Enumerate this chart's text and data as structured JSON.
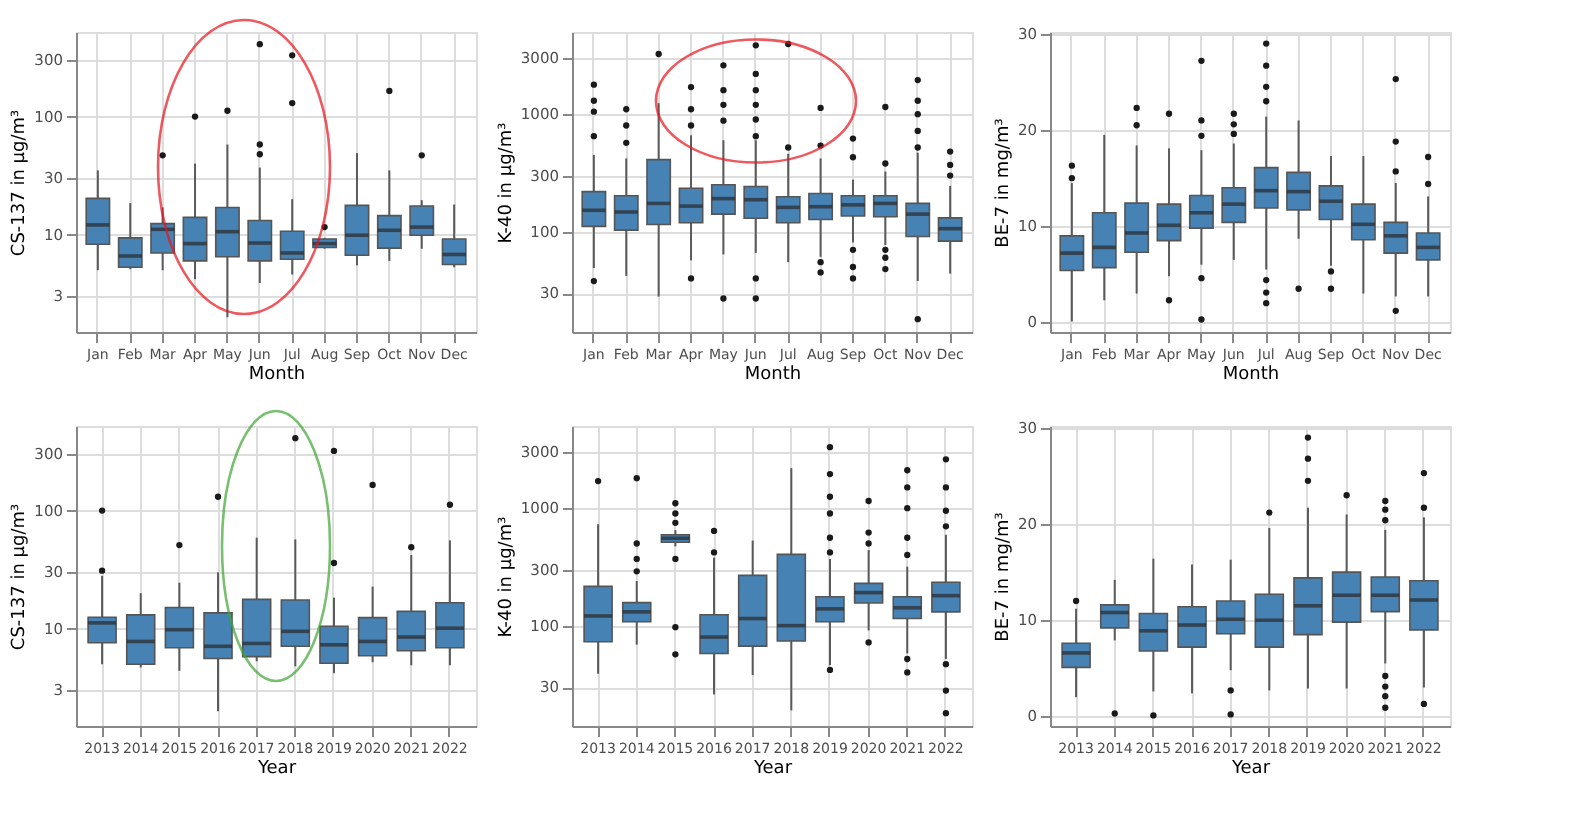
{
  "chart_data": [
    {
      "type": "box",
      "xlabel": "Month",
      "ylabel": "CS-137 in µg/m³",
      "categories": [
        "Jan",
        "Feb",
        "Mar",
        "Apr",
        "May",
        "Jun",
        "Jul",
        "Aug",
        "Sep",
        "Oct",
        "Nov",
        "Dec"
      ],
      "ylim": [
        1.5,
        520
      ],
      "yticks": [
        3,
        10,
        30,
        100,
        300
      ],
      "log": true,
      "grid": true,
      "series": [
        {
          "color": "#4682b4",
          "boxes": [
            {
              "low": 5.0,
              "q1": 8.3,
              "median": 12.1,
              "q3": 20.3,
              "high": 35
            },
            {
              "low": 5.1,
              "q1": 5.3,
              "median": 6.6,
              "q3": 9.4,
              "high": 18.5
            },
            {
              "low": 5.0,
              "q1": 7.0,
              "median": 11.1,
              "q3": 12.4,
              "high": 17,
              "outliers": [
                47
              ]
            },
            {
              "low": 4.2,
              "q1": 6.0,
              "median": 8.4,
              "q3": 14.0,
              "high": 40,
              "outliers": [
                100
              ]
            },
            {
              "low": 2.0,
              "q1": 6.5,
              "median": 10.6,
              "q3": 17,
              "high": 58,
              "outliers": [
                112
              ]
            },
            {
              "low": 3.9,
              "q1": 6.0,
              "median": 8.5,
              "q3": 13.2,
              "high": 37,
              "outliers": [
                48,
                58,
                410
              ]
            },
            {
              "low": 4.6,
              "q1": 6.2,
              "median": 7.0,
              "q3": 10.7,
              "high": 20,
              "outliers": [
                130,
                330
              ]
            },
            {
              "low": 7.6,
              "q1": 7.8,
              "median": 8.4,
              "q3": 9.2,
              "high": 9.4,
              "outliers": [
                11.6
              ]
            },
            {
              "low": 5.5,
              "q1": 6.7,
              "median": 9.9,
              "q3": 17.7,
              "high": 49
            },
            {
              "low": 6.0,
              "q1": 7.7,
              "median": 10.9,
              "q3": 14.5,
              "high": 35,
              "outliers": [
                165
              ]
            },
            {
              "low": 7.6,
              "q1": 9.9,
              "median": 11.6,
              "q3": 17.5,
              "high": 19.6,
              "outliers": [
                47
              ]
            },
            {
              "low": 5.3,
              "q1": 5.6,
              "median": 6.8,
              "q3": 9.2,
              "high": 18
            }
          ]
        }
      ]
    },
    {
      "type": "box",
      "xlabel": "Month",
      "ylabel": "K-40 in µg/m³",
      "categories": [
        "Jan",
        "Feb",
        "Mar",
        "Apr",
        "May",
        "Jun",
        "Jul",
        "Aug",
        "Sep",
        "Oct",
        "Nov",
        "Dec"
      ],
      "ylim": [
        14,
        5000
      ],
      "yticks": [
        30,
        100,
        300,
        1000,
        3000
      ],
      "log": true,
      "grid": true,
      "series": [
        {
          "color": "#4682b4",
          "boxes": [
            {
              "low": 49,
              "q1": 111,
              "median": 152,
              "q3": 219,
              "high": 450,
              "outliers": [
                38,
                650,
                1050,
                1300,
                1780
              ]
            },
            {
              "low": 42,
              "q1": 103,
              "median": 147,
              "q3": 202,
              "high": 420,
              "outliers": [
                570,
                800,
                1100
              ]
            },
            {
              "low": 28,
              "q1": 115,
              "median": 174,
              "q3": 410,
              "high": 1240,
              "outliers": [
                3250
              ]
            },
            {
              "low": 57,
              "q1": 119,
              "median": 165,
              "q3": 234,
              "high": 660,
              "outliers": [
                40,
                800,
                1100,
                1700
              ]
            },
            {
              "low": 64,
              "q1": 141,
              "median": 191,
              "q3": 251,
              "high": 600,
              "outliers": [
                27,
                880,
                1200,
                1600,
                2600
              ]
            },
            {
              "low": 66,
              "q1": 130,
              "median": 187,
              "q3": 242,
              "high": 600,
              "outliers": [
                27,
                40,
                650,
                900,
                1200,
                1600,
                2200,
                3850
              ]
            },
            {
              "low": 55,
              "q1": 119,
              "median": 161,
              "q3": 198,
              "high": 460,
              "outliers": [
                520,
                3950
              ]
            },
            {
              "low": 61,
              "q1": 127,
              "median": 163,
              "q3": 211,
              "high": 420,
              "outliers": [
                45,
                55,
                540,
                1130
              ]
            },
            {
              "low": 81,
              "q1": 136,
              "median": 169,
              "q3": 202,
              "high": 277,
              "outliers": [
                40,
                50,
                70,
                430,
                620
              ]
            },
            {
              "low": 77,
              "q1": 134,
              "median": 174,
              "q3": 202,
              "high": 325,
              "outliers": [
                48,
                60,
                70,
                380,
                1150
              ]
            },
            {
              "low": 38,
              "q1": 91,
              "median": 141,
              "q3": 174,
              "high": 470,
              "outliers": [
                18,
                520,
                720,
                1000,
                1300,
                1950
              ]
            },
            {
              "low": 44,
              "q1": 83,
              "median": 106,
              "q3": 131,
              "high": 245,
              "outliers": [
                300,
                370,
                480
              ]
            }
          ]
        }
      ]
    },
    {
      "type": "box",
      "xlabel": "Month",
      "ylabel": "BE-7 in mg/m³",
      "categories": [
        "Jan",
        "Feb",
        "Mar",
        "Apr",
        "May",
        "Jun",
        "Jul",
        "Aug",
        "Sep",
        "Oct",
        "Nov",
        "Dec"
      ],
      "ylim": [
        -1,
        30.2
      ],
      "yticks": [
        0,
        10,
        20,
        30
      ],
      "grid": true,
      "series": [
        {
          "color": "#4682b4",
          "boxes": [
            {
              "low": 0.1,
              "q1": 5.4,
              "median": 7.2,
              "q3": 9.0,
              "high": 14.5,
              "outliers": [
                15.0,
                16.3
              ]
            },
            {
              "low": 2.3,
              "q1": 5.7,
              "median": 7.8,
              "q3": 11.4,
              "high": 19.5
            },
            {
              "low": 3.0,
              "q1": 7.3,
              "median": 9.3,
              "q3": 12.4,
              "high": 18.4,
              "outliers": [
                20.5,
                22.3
              ]
            },
            {
              "low": 4.8,
              "q1": 8.5,
              "median": 10.1,
              "q3": 12.3,
              "high": 18.1,
              "outliers": [
                2.3,
                21.7
              ]
            },
            {
              "low": 6.0,
              "q1": 9.8,
              "median": 11.4,
              "q3": 13.2,
              "high": 17.9,
              "outliers": [
                0.3,
                4.6,
                19.4,
                21.0,
                27.2
              ]
            },
            {
              "low": 6.5,
              "q1": 10.4,
              "median": 12.3,
              "q3": 14.0,
              "high": 18.6,
              "outliers": [
                19.6,
                20.6,
                21.7
              ]
            },
            {
              "low": 5.5,
              "q1": 11.9,
              "median": 13.7,
              "q3": 16.1,
              "high": 21.4,
              "outliers": [
                2.0,
                3.1,
                4.4,
                23.0,
                24.5,
                26.7,
                29.0
              ]
            },
            {
              "low": 8.7,
              "q1": 11.7,
              "median": 13.6,
              "q3": 15.6,
              "high": 21.0,
              "outliers": [
                3.5
              ]
            },
            {
              "low": 5.9,
              "q1": 10.7,
              "median": 12.6,
              "q3": 14.2,
              "high": 17.3,
              "outliers": [
                3.5,
                5.3
              ]
            },
            {
              "low": 3.0,
              "q1": 8.6,
              "median": 10.2,
              "q3": 12.3,
              "high": 17.3
            },
            {
              "low": 2.7,
              "q1": 7.2,
              "median": 9.0,
              "q3": 10.4,
              "high": 14.5,
              "outliers": [
                1.2,
                15.7,
                18.8,
                25.3
              ]
            },
            {
              "low": 2.7,
              "q1": 6.5,
              "median": 7.8,
              "q3": 9.3,
              "high": 13.1,
              "outliers": [
                14.4,
                17.2
              ]
            }
          ]
        }
      ]
    },
    {
      "type": "box",
      "xlabel": "Year",
      "ylabel": "CS-137 in µg/m³",
      "categories": [
        "2013",
        "2014",
        "2015",
        "2016",
        "2017",
        "2018",
        "2019",
        "2020",
        "2021",
        "2022"
      ],
      "ylim": [
        1.5,
        520
      ],
      "yticks": [
        3,
        10,
        30,
        100,
        300
      ],
      "log": true,
      "grid": true,
      "series": [
        {
          "color": "#4682b4",
          "boxes": [
            {
              "low": 5.0,
              "q1": 7.6,
              "median": 11.2,
              "q3": 12.5,
              "high": 28,
              "outliers": [
                31,
                100
              ]
            },
            {
              "low": 4.7,
              "q1": 5.0,
              "median": 7.8,
              "q3": 13.1,
              "high": 20
            },
            {
              "low": 4.4,
              "q1": 6.9,
              "median": 9.8,
              "q3": 15.1,
              "high": 24.5,
              "outliers": [
                51
              ]
            },
            {
              "low": 2.0,
              "q1": 5.6,
              "median": 7.1,
              "q3": 13.6,
              "high": 30,
              "outliers": [
                131
              ]
            },
            {
              "low": 5.3,
              "q1": 5.8,
              "median": 7.5,
              "q3": 17.7,
              "high": 59
            },
            {
              "low": 4.8,
              "q1": 7.1,
              "median": 9.5,
              "q3": 17.5,
              "high": 57,
              "outliers": [
                410
              ]
            },
            {
              "low": 4.2,
              "q1": 5.1,
              "median": 7.3,
              "q3": 10.5,
              "high": 18.3,
              "outliers": [
                36,
                320
              ]
            },
            {
              "low": 5.2,
              "q1": 5.9,
              "median": 7.8,
              "q3": 12.4,
              "high": 22.7,
              "outliers": [
                165
              ]
            },
            {
              "low": 4.9,
              "q1": 6.5,
              "median": 8.5,
              "q3": 14.0,
              "high": 42,
              "outliers": [
                49
              ]
            },
            {
              "low": 4.9,
              "q1": 6.9,
              "median": 10.1,
              "q3": 16.6,
              "high": 56,
              "outliers": [
                112
              ]
            }
          ]
        }
      ]
    },
    {
      "type": "box",
      "xlabel": "Year",
      "ylabel": "K-40 in µg/m³",
      "categories": [
        "2013",
        "2014",
        "2015",
        "2016",
        "2017",
        "2018",
        "2019",
        "2020",
        "2021",
        "2022"
      ],
      "ylim": [
        14,
        5000
      ],
      "yticks": [
        30,
        100,
        300,
        1000,
        3000
      ],
      "log": true,
      "grid": true,
      "series": [
        {
          "color": "#4682b4",
          "boxes": [
            {
              "low": 39,
              "q1": 73,
              "median": 121,
              "q3": 216,
              "high": 730,
              "outliers": [
                1700
              ]
            },
            {
              "low": 69,
              "q1": 108,
              "median": 131,
              "q3": 157,
              "high": 240,
              "outliers": [
                290,
                370,
                500,
                1800
              ]
            },
            {
              "low": 473,
              "q1": 512,
              "median": 554,
              "q3": 593,
              "high": 650,
              "outliers": [
                57,
                97,
                370,
                750,
                900,
                1100
              ]
            },
            {
              "low": 26,
              "q1": 58,
              "median": 80,
              "q3": 124,
              "high": 380,
              "outliers": [
                420,
                640
              ]
            },
            {
              "low": 38,
              "q1": 67,
              "median": 115,
              "q3": 268,
              "high": 530
            },
            {
              "low": 19,
              "q1": 74,
              "median": 100,
              "q3": 404,
              "high": 2190
            },
            {
              "low": 46,
              "q1": 108,
              "median": 139,
              "q3": 176,
              "high": 369,
              "outliers": [
                42,
                420,
                560,
                900,
                1250,
                1950,
                3300
              ]
            },
            {
              "low": 91,
              "q1": 156,
              "median": 191,
              "q3": 229,
              "high": 440,
              "outliers": [
                72,
                500,
                620,
                1150
              ]
            },
            {
              "low": 58,
              "q1": 115,
              "median": 142,
              "q3": 176,
              "high": 318,
              "outliers": [
                40,
                52,
                400,
                560,
                1000,
                1500,
                2100
              ]
            },
            {
              "low": 52,
              "q1": 131,
              "median": 180,
              "q3": 234,
              "high": 593,
              "outliers": [
                18,
                28,
                47,
                700,
                950,
                1500,
                2600
              ]
            }
          ]
        }
      ]
    },
    {
      "type": "box",
      "xlabel": "Year",
      "ylabel": "BE-7 in mg/m³",
      "categories": [
        "2013",
        "2014",
        "2015",
        "2016",
        "2017",
        "2018",
        "2019",
        "2020",
        "2021",
        "2022"
      ],
      "ylim": [
        -1,
        30.2
      ],
      "yticks": [
        0,
        10,
        20,
        30
      ],
      "grid": true,
      "series": [
        {
          "color": "#4682b4",
          "boxes": [
            {
              "low": 2.0,
              "q1": 5.1,
              "median": 6.6,
              "q3": 7.6,
              "high": 11.2,
              "outliers": [
                12.0
              ]
            },
            {
              "low": 7.9,
              "q1": 9.2,
              "median": 10.8,
              "q3": 11.6,
              "high": 14.2,
              "outliers": [
                0.3
              ]
            },
            {
              "low": 2.6,
              "q1": 6.8,
              "median": 8.9,
              "q3": 10.7,
              "high": 16.4,
              "outliers": [
                0.1
              ]
            },
            {
              "low": 2.4,
              "q1": 7.2,
              "median": 9.5,
              "q3": 11.4,
              "high": 15.8
            },
            {
              "low": 4.8,
              "q1": 8.6,
              "median": 10.1,
              "q3": 12.0,
              "high": 16.3,
              "outliers": [
                0.2,
                2.7
              ]
            },
            {
              "low": 2.7,
              "q1": 7.2,
              "median": 10.0,
              "q3": 12.7,
              "high": 19.6,
              "outliers": [
                21.2
              ]
            },
            {
              "low": 2.9,
              "q1": 8.5,
              "median": 11.5,
              "q3": 14.4,
              "high": 21.7,
              "outliers": [
                24.5,
                26.8,
                29.0
              ]
            },
            {
              "low": 2.9,
              "q1": 9.8,
              "median": 12.6,
              "q3": 15.0,
              "high": 21.0,
              "outliers": [
                23.0
              ]
            },
            {
              "low": 5.5,
              "q1": 10.9,
              "median": 12.6,
              "q3": 14.5,
              "high": 19.4,
              "outliers": [
                0.9,
                2.1,
                3.1,
                4.2,
                20.4,
                21.5,
                22.4
              ]
            },
            {
              "low": 3.0,
              "q1": 9.0,
              "median": 12.1,
              "q3": 14.1,
              "high": 20.7,
              "outliers": [
                1.3,
                21.7,
                25.3
              ]
            }
          ]
        }
      ]
    }
  ]
}
